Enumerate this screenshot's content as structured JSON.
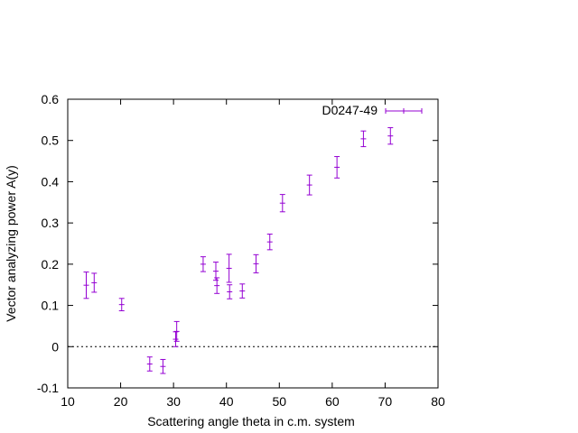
{
  "chart_data": {
    "type": "scatter",
    "title": "",
    "xlabel": "Scattering angle theta in c.m. system",
    "ylabel": "Vector analyzing power A(y)",
    "xlim": [
      10,
      80
    ],
    "ylim": [
      -0.1,
      0.6
    ],
    "xticks": [
      10,
      20,
      30,
      40,
      50,
      60,
      70,
      80
    ],
    "yticks": [
      -0.1,
      0,
      0.1,
      0.2,
      0.3,
      0.4,
      0.5,
      0.6
    ],
    "xtick_labels": [
      "10",
      "20",
      "30",
      "40",
      "50",
      "60",
      "70",
      "80"
    ],
    "ytick_labels": [
      "-0.1",
      "0",
      "0.1",
      "0.2",
      "0.3",
      "0.4",
      "0.5",
      "0.6"
    ],
    "grid": false,
    "zero_line": true,
    "legend_position": "top-right",
    "series": [
      {
        "name": "D0247-49",
        "color": "#9400d3",
        "marker": "plus",
        "points": [
          {
            "x": 13.5,
            "y": 0.149,
            "err": 0.032
          },
          {
            "x": 15.0,
            "y": 0.155,
            "err": 0.023
          },
          {
            "x": 20.2,
            "y": 0.102,
            "err": 0.015
          },
          {
            "x": 25.5,
            "y": -0.042,
            "err": 0.017
          },
          {
            "x": 28.0,
            "y": -0.048,
            "err": 0.017
          },
          {
            "x": 30.4,
            "y": 0.018,
            "err": 0.018
          },
          {
            "x": 30.6,
            "y": 0.037,
            "err": 0.024
          },
          {
            "x": 35.6,
            "y": 0.2,
            "err": 0.018
          },
          {
            "x": 38.0,
            "y": 0.183,
            "err": 0.022
          },
          {
            "x": 38.2,
            "y": 0.148,
            "err": 0.019
          },
          {
            "x": 40.5,
            "y": 0.19,
            "err": 0.034
          },
          {
            "x": 40.6,
            "y": 0.133,
            "err": 0.017
          },
          {
            "x": 43.0,
            "y": 0.135,
            "err": 0.017
          },
          {
            "x": 45.6,
            "y": 0.201,
            "err": 0.022
          },
          {
            "x": 48.2,
            "y": 0.254,
            "err": 0.019
          },
          {
            "x": 50.6,
            "y": 0.348,
            "err": 0.021
          },
          {
            "x": 55.7,
            "y": 0.392,
            "err": 0.024
          },
          {
            "x": 60.9,
            "y": 0.435,
            "err": 0.026
          },
          {
            "x": 65.9,
            "y": 0.504,
            "err": 0.019
          },
          {
            "x": 71.0,
            "y": 0.511,
            "err": 0.02
          }
        ]
      }
    ]
  }
}
